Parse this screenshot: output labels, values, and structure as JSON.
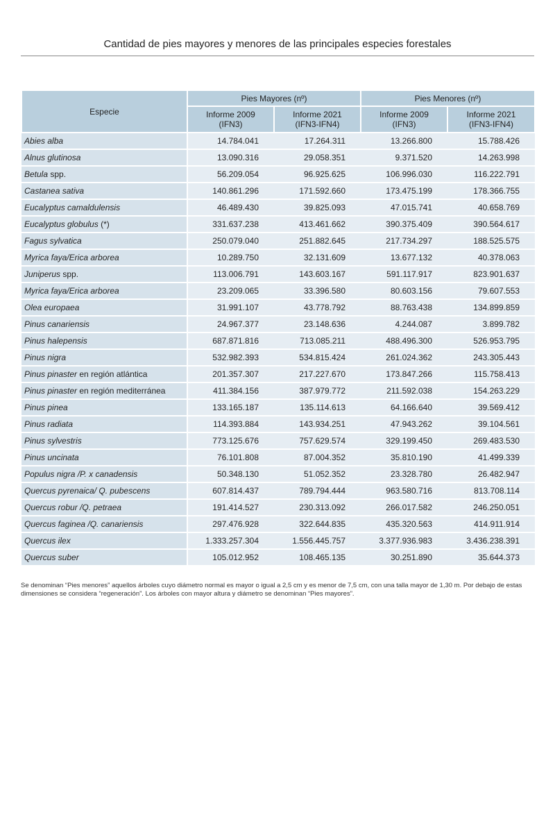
{
  "title": "Cantidad de pies mayores y menores de las principales especies forestales",
  "header": {
    "species": "Especie",
    "group_mayores": "Pies Mayores (nº)",
    "group_menores": "Pies Menores (nº)",
    "col_2009": "Informe 2009",
    "col_2009_sub": "(IFN3)",
    "col_2021": "Informe 2021",
    "col_2021_sub": "(IFN3-IFN4)"
  },
  "rows": [
    {
      "it": "Abies alba",
      "rest": "",
      "v": [
        "14.784.041",
        "17.264.311",
        "13.266.800",
        "15.788.426"
      ]
    },
    {
      "it": "Alnus glutinosa",
      "rest": "",
      "v": [
        "13.090.316",
        "29.058.351",
        "9.371.520",
        "14.263.998"
      ]
    },
    {
      "it": "Betula",
      "rest": " spp.",
      "v": [
        "56.209.054",
        "96.925.625",
        "106.996.030",
        "116.222.791"
      ]
    },
    {
      "it": "Castanea sativa",
      "rest": "",
      "v": [
        "140.861.296",
        "171.592.660",
        "173.475.199",
        "178.366.755"
      ]
    },
    {
      "it": "Eucalyptus camaldulensis",
      "rest": "",
      "v": [
        "46.489.430",
        "39.825.093",
        "47.015.741",
        "40.658.769"
      ]
    },
    {
      "it": "Eucalyptus globulus",
      "rest": " (*)",
      "v": [
        "331.637.238",
        "413.461.662",
        "390.375.409",
        "390.564.617"
      ]
    },
    {
      "it": "Fagus sylvatica",
      "rest": "",
      "v": [
        "250.079.040",
        "251.882.645",
        "217.734.297",
        "188.525.575"
      ]
    },
    {
      "it": "Myrica faya/Erica arborea",
      "rest": "",
      "v": [
        "10.289.750",
        "32.131.609",
        "13.677.132",
        "40.378.063"
      ]
    },
    {
      "it": "Juniperus",
      "rest": " spp.",
      "v": [
        "113.006.791",
        "143.603.167",
        "591.117.917",
        "823.901.637"
      ]
    },
    {
      "it": "Myrica faya/Erica arborea",
      "rest": "",
      "v": [
        "23.209.065",
        "33.396.580",
        "80.603.156",
        "79.607.553"
      ]
    },
    {
      "it": "Olea europaea",
      "rest": "",
      "v": [
        "31.991.107",
        "43.778.792",
        "88.763.438",
        "134.899.859"
      ]
    },
    {
      "it": "Pinus canariensis",
      "rest": "",
      "v": [
        "24.967.377",
        "23.148.636",
        "4.244.087",
        "3.899.782"
      ]
    },
    {
      "it": "Pinus halepensis",
      "rest": "",
      "v": [
        "687.871.816",
        "713.085.211",
        "488.496.300",
        "526.953.795"
      ]
    },
    {
      "it": "Pinus nigra",
      "rest": "",
      "v": [
        "532.982.393",
        "534.815.424",
        "261.024.362",
        "243.305.443"
      ]
    },
    {
      "it": "Pinus pinaster",
      "rest": " en región atlántica",
      "v": [
        "201.357.307",
        "217.227.670",
        "173.847.266",
        "115.758.413"
      ]
    },
    {
      "it": "Pinus pinaster",
      "rest": " en región mediterránea",
      "v": [
        "411.384.156",
        "387.979.772",
        "211.592.038",
        "154.263.229"
      ]
    },
    {
      "it": "Pinus pinea",
      "rest": "",
      "v": [
        "133.165.187",
        "135.114.613",
        "64.166.640",
        "39.569.412"
      ]
    },
    {
      "it": "Pinus radiata",
      "rest": "",
      "v": [
        "114.393.884",
        "143.934.251",
        "47.943.262",
        "39.104.561"
      ]
    },
    {
      "it": "Pinus sylvestris",
      "rest": "",
      "v": [
        "773.125.676",
        "757.629.574",
        "329.199.450",
        "269.483.530"
      ]
    },
    {
      "it": "Pinus uncinata",
      "rest": "",
      "v": [
        "76.101.808",
        "87.004.352",
        "35.810.190",
        "41.499.339"
      ]
    },
    {
      "it": "Populus nigra /P. x canadensis",
      "rest": "",
      "v": [
        "50.348.130",
        "51.052.352",
        "23.328.780",
        "26.482.947"
      ]
    },
    {
      "it": "Quercus pyrenaica/ Q. pubescens",
      "rest": "",
      "v": [
        "607.814.437",
        "789.794.444",
        "963.580.716",
        "813.708.114"
      ]
    },
    {
      "it": "Quercus robur /Q. petraea",
      "rest": "",
      "v": [
        "191.414.527",
        "230.313.092",
        "266.017.582",
        "246.250.051"
      ]
    },
    {
      "it": "Quercus faginea /Q. canariensis",
      "rest": "",
      "v": [
        "297.476.928",
        "322.644.835",
        "435.320.563",
        "414.911.914"
      ]
    },
    {
      "it": "Quercus ilex",
      "rest": "",
      "v": [
        "1.333.257.304",
        "1.556.445.757",
        "3.377.936.983",
        "3.436.238.391"
      ]
    },
    {
      "it": "Quercus suber",
      "rest": "",
      "v": [
        "105.012.952",
        "108.465.135",
        "30.251.890",
        "35.644.373"
      ]
    }
  ],
  "footnote": "Se denominan “Pies menores” aquellos árboles cuyo diámetro normal es mayor o igual a 2,5 cm y es menor de 7,5 cm, con una talla mayor de 1,30 m. Por debajo de estas dimensiones se considera “regeneración”. Los árboles con mayor altura y diámetro se denominan “Pies mayores”."
}
